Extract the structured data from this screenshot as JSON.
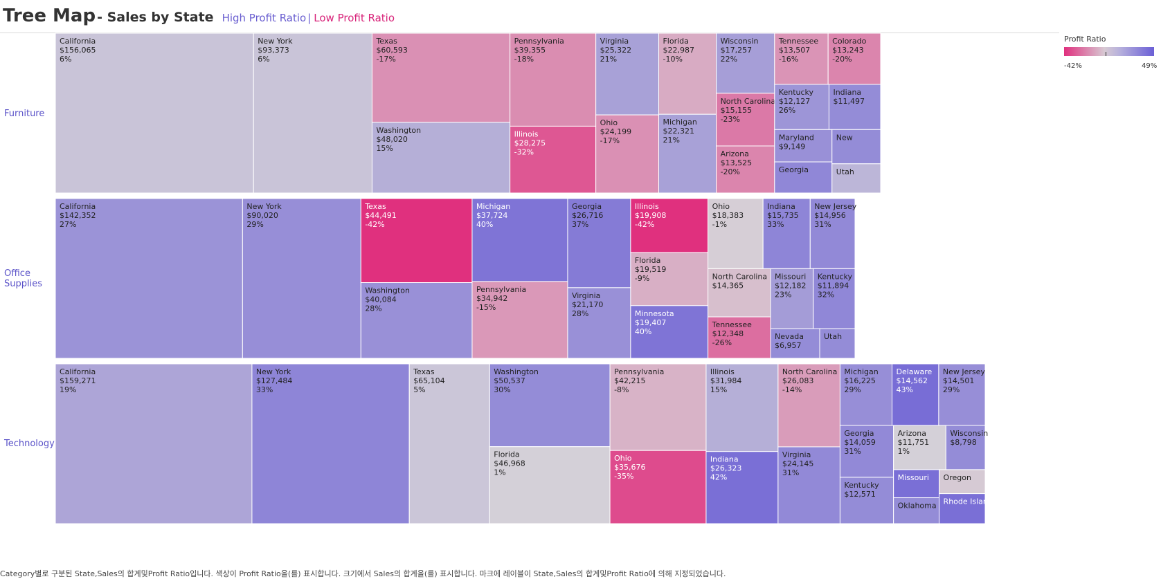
{
  "header": {
    "title": "Tree Map",
    "subtitle": "- Sales by State",
    "high_link": "High Profit Ratio",
    "separator": "|",
    "low_link": "Low Profit Ratio"
  },
  "legend": {
    "title": "Profit Ratio",
    "min_label": "-42%",
    "max_label": "49%"
  },
  "caption": "Category별로 구분된 State,Sales의 합계및Profit Ratio입니다. 색상이 Profit Ratio을(를) 표시합니다. 크기에서 Sales의 합계을(를) 표시합니다. 마크에 레이블이 State,Sales의 합계및Profit Ratio에 의해 지정되었습니다.",
  "colors": {
    "low": "#e0307e",
    "neutral": "#d6d2d8",
    "high": "#6b5fd6"
  },
  "chart_data": {
    "type": "treemap",
    "size_measure": "Sum of Sales",
    "color_measure": "Profit Ratio",
    "color_range": [
      -0.42,
      0.49
    ],
    "categories": [
      {
        "name": "Furniture",
        "states": [
          {
            "state": "California",
            "sales": "$156,065",
            "ratio": "6%",
            "value": 156065,
            "pct": 0.06
          },
          {
            "state": "New York",
            "sales": "$93,373",
            "ratio": "6%",
            "value": 93373,
            "pct": 0.06
          },
          {
            "state": "Texas",
            "sales": "$60,593",
            "ratio": "-17%",
            "value": 60593,
            "pct": -0.17
          },
          {
            "state": "Washington",
            "sales": "$48,020",
            "ratio": "15%",
            "value": 48020,
            "pct": 0.15
          },
          {
            "state": "Pennsylvania",
            "sales": "$39,355",
            "ratio": "-18%",
            "value": 39355,
            "pct": -0.18
          },
          {
            "state": "Illinois",
            "sales": "$28,275",
            "ratio": "-32%",
            "value": 28275,
            "pct": -0.32
          },
          {
            "state": "Virginia",
            "sales": "$25,322",
            "ratio": "21%",
            "value": 25322,
            "pct": 0.21
          },
          {
            "state": "Ohio",
            "sales": "$24,199",
            "ratio": "-17%",
            "value": 24199,
            "pct": -0.17
          },
          {
            "state": "Florida",
            "sales": "$22,987",
            "ratio": "-10%",
            "value": 22987,
            "pct": -0.1
          },
          {
            "state": "Michigan",
            "sales": "$22,321",
            "ratio": "21%",
            "value": 22321,
            "pct": 0.21
          },
          {
            "state": "Wisconsin",
            "sales": "$17,257",
            "ratio": "22%",
            "value": 17257,
            "pct": 0.22
          },
          {
            "state": "North Carolina",
            "sales": "$15,155",
            "ratio": "-23%",
            "value": 15155,
            "pct": -0.23
          },
          {
            "state": "Arizona",
            "sales": "$13,525",
            "ratio": "-20%",
            "value": 13525,
            "pct": -0.2
          },
          {
            "state": "Tennessee",
            "sales": "$13,507",
            "ratio": "-16%",
            "value": 13507,
            "pct": -0.16
          },
          {
            "state": "Colorado",
            "sales": "$13,243",
            "ratio": "-20%",
            "value": 13243,
            "pct": -0.2
          },
          {
            "state": "Kentucky",
            "sales": "$12,127",
            "ratio": "26%",
            "value": 12127,
            "pct": 0.26
          },
          {
            "state": "Indiana",
            "sales": "$11,497",
            "ratio": "",
            "value": 11497,
            "pct": 0.3
          },
          {
            "state": "Maryland",
            "sales": "$9,149",
            "ratio": "",
            "value": 9149,
            "pct": 0.28
          },
          {
            "state": "Georgia",
            "sales": "",
            "ratio": "",
            "value": 8800,
            "pct": 0.32
          },
          {
            "state": "New",
            "sales": "",
            "ratio": "",
            "value": 8200,
            "pct": 0.3
          },
          {
            "state": "Utah",
            "sales": "",
            "ratio": "",
            "value": 7000,
            "pct": 0.12
          }
        ]
      },
      {
        "name": "Office Supplies",
        "states": [
          {
            "state": "California",
            "sales": "$142,352",
            "ratio": "27%",
            "value": 142352,
            "pct": 0.27
          },
          {
            "state": "New York",
            "sales": "$90,020",
            "ratio": "29%",
            "value": 90020,
            "pct": 0.29
          },
          {
            "state": "Texas",
            "sales": "$44,491",
            "ratio": "-42%",
            "value": 44491,
            "pct": -0.42
          },
          {
            "state": "Washington",
            "sales": "$40,084",
            "ratio": "28%",
            "value": 40084,
            "pct": 0.28
          },
          {
            "state": "Michigan",
            "sales": "$37,724",
            "ratio": "40%",
            "value": 37724,
            "pct": 0.4
          },
          {
            "state": "Pennsylvania",
            "sales": "$34,942",
            "ratio": "-15%",
            "value": 34942,
            "pct": -0.15
          },
          {
            "state": "Georgia",
            "sales": "$26,716",
            "ratio": "37%",
            "value": 26716,
            "pct": 0.37
          },
          {
            "state": "Virginia",
            "sales": "$21,170",
            "ratio": "28%",
            "value": 21170,
            "pct": 0.28
          },
          {
            "state": "Illinois",
            "sales": "$19,908",
            "ratio": "-42%",
            "value": 19908,
            "pct": -0.42
          },
          {
            "state": "Florida",
            "sales": "$19,519",
            "ratio": "-9%",
            "value": 19519,
            "pct": -0.09
          },
          {
            "state": "Minnesota",
            "sales": "$19,407",
            "ratio": "40%",
            "value": 19407,
            "pct": 0.4
          },
          {
            "state": "Ohio",
            "sales": "$18,383",
            "ratio": "-1%",
            "value": 18383,
            "pct": -0.01
          },
          {
            "state": "Indiana",
            "sales": "$15,735",
            "ratio": "33%",
            "value": 15735,
            "pct": 0.33
          },
          {
            "state": "New Jersey",
            "sales": "$14,956",
            "ratio": "31%",
            "value": 14956,
            "pct": 0.31
          },
          {
            "state": "North Carolina",
            "sales": "$14,365",
            "ratio": "",
            "value": 14365,
            "pct": -0.05
          },
          {
            "state": "Tennessee",
            "sales": "$12,348",
            "ratio": "-26%",
            "value": 12348,
            "pct": -0.26
          },
          {
            "state": "Missouri",
            "sales": "$12,182",
            "ratio": "23%",
            "value": 12182,
            "pct": 0.23
          },
          {
            "state": "Kentucky",
            "sales": "$11,894",
            "ratio": "32%",
            "value": 11894,
            "pct": 0.32
          },
          {
            "state": "Nevada",
            "sales": "$6,957",
            "ratio": "",
            "value": 6957,
            "pct": 0.3
          },
          {
            "state": "Utah",
            "sales": "",
            "ratio": "",
            "value": 5000,
            "pct": 0.3
          }
        ]
      },
      {
        "name": "Technology",
        "states": [
          {
            "state": "California",
            "sales": "$159,271",
            "ratio": "19%",
            "value": 159271,
            "pct": 0.19
          },
          {
            "state": "New York",
            "sales": "$127,484",
            "ratio": "33%",
            "value": 127484,
            "pct": 0.33
          },
          {
            "state": "Texas",
            "sales": "$65,104",
            "ratio": "5%",
            "value": 65104,
            "pct": 0.05
          },
          {
            "state": "Washington",
            "sales": "$50,537",
            "ratio": "30%",
            "value": 50537,
            "pct": 0.3
          },
          {
            "state": "Florida",
            "sales": "$46,968",
            "ratio": "1%",
            "value": 46968,
            "pct": 0.01
          },
          {
            "state": "Pennsylvania",
            "sales": "$42,215",
            "ratio": "-8%",
            "value": 42215,
            "pct": -0.08
          },
          {
            "state": "Ohio",
            "sales": "$35,676",
            "ratio": "-35%",
            "value": 35676,
            "pct": -0.35
          },
          {
            "state": "Illinois",
            "sales": "$31,984",
            "ratio": "15%",
            "value": 31984,
            "pct": 0.15
          },
          {
            "state": "Indiana",
            "sales": "$26,323",
            "ratio": "42%",
            "value": 26323,
            "pct": 0.42
          },
          {
            "state": "North Carolina",
            "sales": "$26,083",
            "ratio": "-14%",
            "value": 26083,
            "pct": -0.14
          },
          {
            "state": "Virginia",
            "sales": "$24,145",
            "ratio": "31%",
            "value": 24145,
            "pct": 0.31
          },
          {
            "state": "Michigan",
            "sales": "$16,225",
            "ratio": "29%",
            "value": 16225,
            "pct": 0.29
          },
          {
            "state": "Delaware",
            "sales": "$14,562",
            "ratio": "43%",
            "value": 14562,
            "pct": 0.43
          },
          {
            "state": "New Jersey",
            "sales": "$14,501",
            "ratio": "29%",
            "value": 14501,
            "pct": 0.29
          },
          {
            "state": "Georgia",
            "sales": "$14,059",
            "ratio": "31%",
            "value": 14059,
            "pct": 0.31
          },
          {
            "state": "Kentucky",
            "sales": "$12,571",
            "ratio": "",
            "value": 12571,
            "pct": 0.3
          },
          {
            "state": "Arizona",
            "sales": "$11,751",
            "ratio": "1%",
            "value": 11751,
            "pct": 0.01
          },
          {
            "state": "Wisconsin",
            "sales": "$8,798",
            "ratio": "",
            "value": 8798,
            "pct": 0.3
          },
          {
            "state": "Missouri",
            "sales": "",
            "ratio": "",
            "value": 6500,
            "pct": 0.42
          },
          {
            "state": "Oklahoma",
            "sales": "",
            "ratio": "",
            "value": 6000,
            "pct": 0.3
          },
          {
            "state": "Oregon",
            "sales": "",
            "ratio": "",
            "value": 5600,
            "pct": -0.02
          },
          {
            "state": "Rhode Island",
            "sales": "",
            "ratio": "",
            "value": 7000,
            "pct": 0.42
          }
        ]
      }
    ]
  }
}
